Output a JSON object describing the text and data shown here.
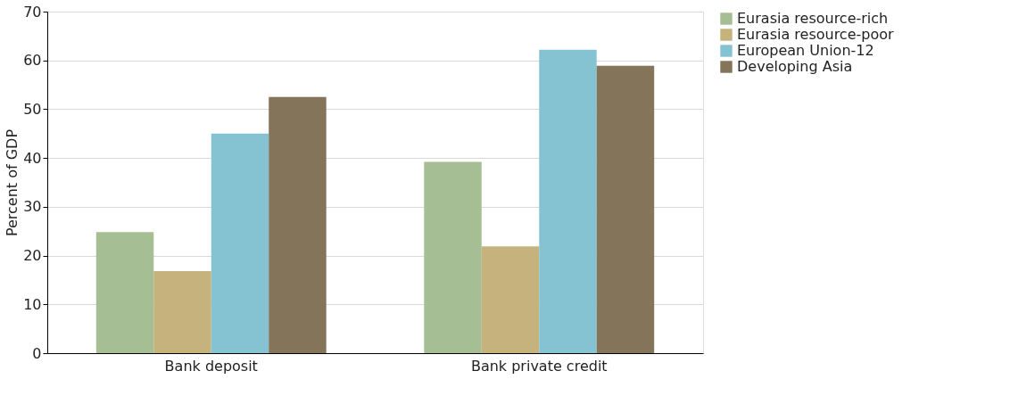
{
  "chart_data": {
    "type": "bar",
    "ylabel": "Percent of GDP",
    "categories": [
      "Bank deposit",
      "Bank private credit"
    ],
    "series": [
      {
        "name": "Eurasia resource-rich",
        "color": "#a6be94",
        "values": [
          24.8,
          39.2
        ]
      },
      {
        "name": "Eurasia resource-poor",
        "color": "#c5b27c",
        "values": [
          16.8,
          21.9
        ]
      },
      {
        "name": "European Union-12",
        "color": "#86c3d2",
        "values": [
          45.0,
          62.2
        ]
      },
      {
        "name": "Developing Asia",
        "color": "#84755a",
        "values": [
          52.5,
          58.9
        ]
      }
    ],
    "ylim": [
      0,
      70
    ],
    "yticks": [
      0,
      10,
      20,
      30,
      40,
      50,
      60,
      70
    ],
    "grid": "y",
    "legend": "right"
  }
}
